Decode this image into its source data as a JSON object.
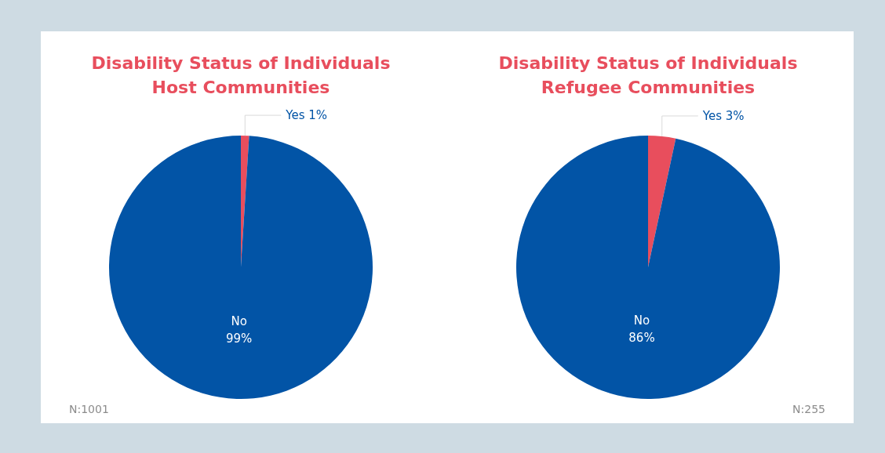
{
  "chart_data": [
    {
      "type": "pie",
      "title": "Disability Status of Individuals",
      "subtitle": "Host Communities",
      "categories": [
        "Yes",
        "No"
      ],
      "values": [
        1,
        99
      ],
      "colors": [
        "#e84e5d",
        "#0254a6"
      ],
      "value_labels": [
        "1%",
        "99%"
      ],
      "annotations": [
        "N:1001"
      ]
    },
    {
      "type": "pie",
      "title": "Disability Status of Individuals",
      "subtitle": "Refugee Communities",
      "categories": [
        "Yes",
        "No"
      ],
      "values": [
        3,
        86
      ],
      "colors": [
        "#e84e5d",
        "#0254a6"
      ],
      "value_labels": [
        "3%",
        "86%"
      ],
      "annotations": [
        "N:255"
      ]
    }
  ]
}
